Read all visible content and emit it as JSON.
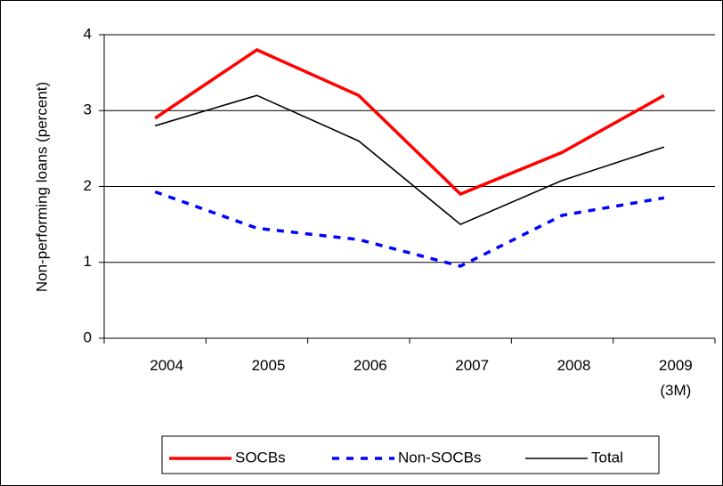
{
  "chart_data": {
    "type": "line",
    "y_label": "Non-performing loans (percent)",
    "categories": [
      "2004",
      "2005",
      "2006",
      "2007",
      "2008",
      "2009\n(3M)"
    ],
    "series": [
      {
        "name": "SOCBs",
        "color": "#ff0000",
        "values": [
          2.9,
          3.8,
          3.2,
          1.9,
          2.45,
          3.2
        ]
      },
      {
        "name": "Non-SOCBs",
        "color": "#0000ff",
        "values": [
          1.93,
          1.45,
          1.3,
          0.95,
          1.62,
          1.85
        ]
      },
      {
        "name": "Total",
        "color": "#000000",
        "values": [
          2.8,
          3.2,
          2.6,
          1.5,
          2.08,
          2.52
        ]
      }
    ],
    "ylim": [
      0,
      4
    ],
    "yticks": [
      0,
      1,
      2,
      3,
      4
    ],
    "grid": true,
    "legend": "bottom"
  }
}
